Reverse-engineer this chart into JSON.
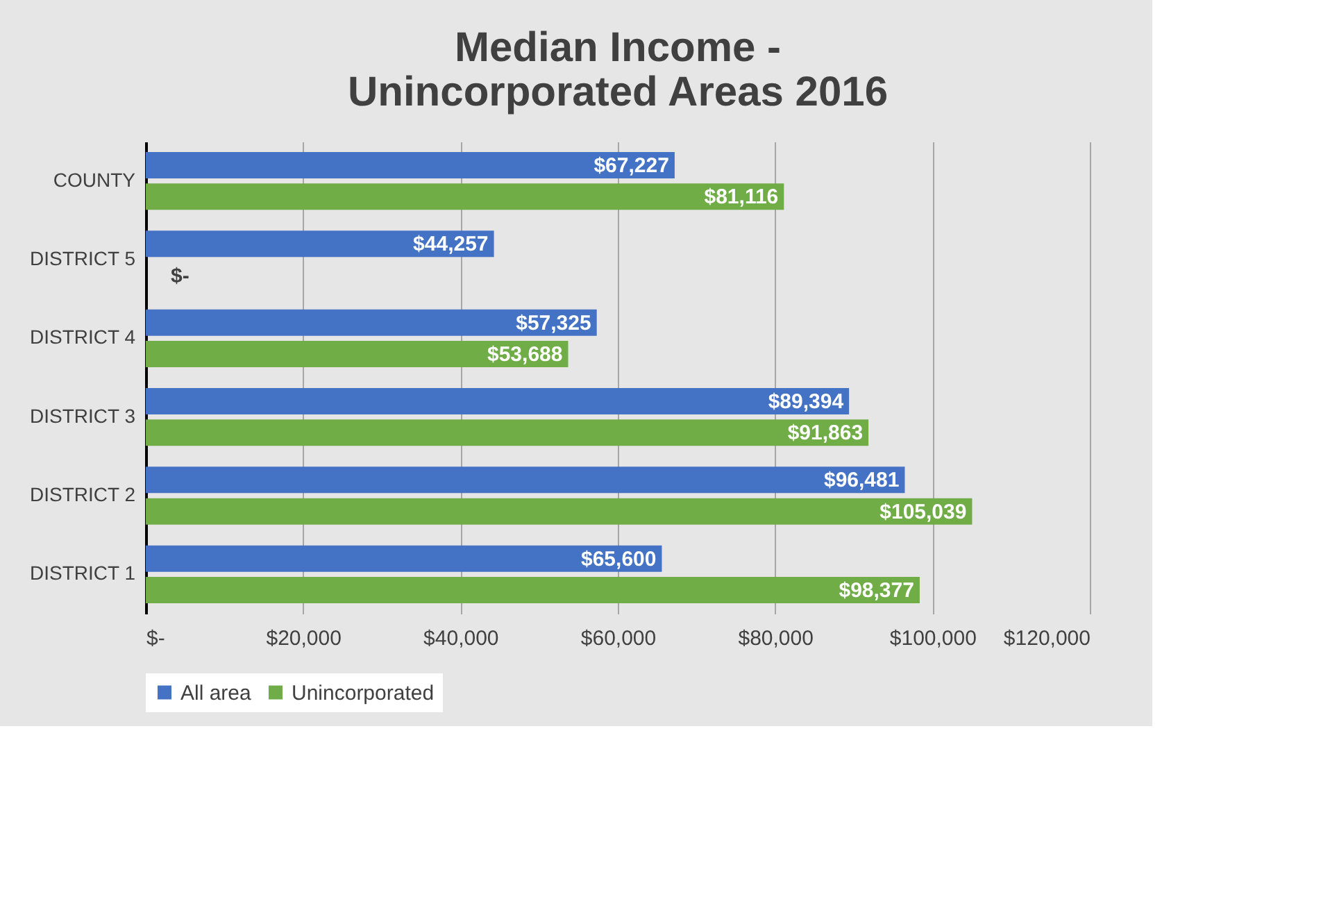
{
  "chart_data": {
    "type": "bar",
    "orientation": "horizontal",
    "title": [
      "Median Income -",
      "Unincorporated Areas 2016"
    ],
    "categories": [
      "COUNTY",
      "DISTRICT 5",
      "DISTRICT 4",
      "DISTRICT 3",
      "DISTRICT 2",
      "DISTRICT 1"
    ],
    "series": [
      {
        "name": "All area",
        "color": "#4472c4",
        "values": [
          67227,
          44257,
          57325,
          89394,
          96481,
          65600
        ],
        "value_labels": [
          "$67,227",
          "$44,257",
          "$57,325",
          "$89,394",
          "$96,481",
          "$65,600"
        ]
      },
      {
        "name": "Unincorporated",
        "color": "#70ad47",
        "values": [
          81116,
          0,
          53688,
          91863,
          105039,
          98377
        ],
        "value_labels": [
          "$81,116",
          "$-",
          "$53,688",
          "$91,863",
          "$105,039",
          "$98,377"
        ]
      }
    ],
    "xlim": [
      0,
      120000
    ],
    "xticks": [
      {
        "value": 0,
        "label": "$-"
      },
      {
        "value": 20000,
        "label": "$20,000"
      },
      {
        "value": 40000,
        "label": "$40,000"
      },
      {
        "value": 60000,
        "label": "$60,000"
      },
      {
        "value": 80000,
        "label": "$80,000"
      },
      {
        "value": 100000,
        "label": "$100,000"
      },
      {
        "value": 120000,
        "label": "$120,000"
      }
    ],
    "grid": "x",
    "legend": "bottom"
  }
}
